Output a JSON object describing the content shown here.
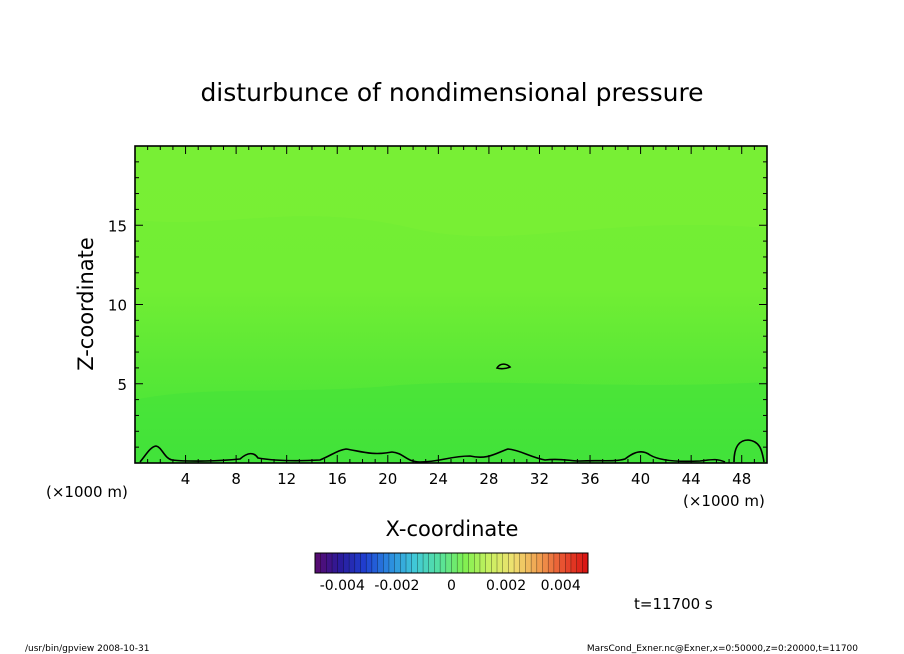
{
  "chart_data": {
    "type": "heatmap",
    "title": "disturbunce of nondimensional pressure",
    "xlabel": "X-coordinate",
    "ylabel": "Z-coordinate",
    "x_unit_left": "(×1000 m)",
    "x_unit_right": "(×1000 m)",
    "xlim": [
      0,
      50
    ],
    "ylim": [
      0,
      20
    ],
    "x_ticks": [
      "4",
      "8",
      "12",
      "16",
      "20",
      "24",
      "28",
      "32",
      "36",
      "40",
      "44",
      "48"
    ],
    "x_tick_values": [
      4,
      8,
      12,
      16,
      20,
      24,
      28,
      32,
      36,
      40,
      44,
      48
    ],
    "y_ticks": [
      "5",
      "10",
      "15"
    ],
    "y_tick_values": [
      5,
      10,
      15
    ],
    "colorbar": {
      "min": -0.005,
      "max": 0.005,
      "tick_labels": [
        "-0.004",
        "-0.002",
        "0",
        "0.002",
        "0.004"
      ],
      "tick_values": [
        -0.004,
        -0.002,
        0,
        0.002,
        0.004
      ],
      "colors": [
        "#5a0a6e",
        "#2a1a9a",
        "#1f3fd0",
        "#2a8ae0",
        "#40c8d8",
        "#55e0a0",
        "#7ef050",
        "#c8f060",
        "#f0e070",
        "#f0a050",
        "#e85030",
        "#d81010"
      ]
    },
    "field_color_low": "#3fe43a",
    "field_color_high": "#7ef233",
    "contour_near_zero": true,
    "time_label": "t=11700 s",
    "colors": {
      "field_low": "#3fe43a",
      "field_high": "#7ef233",
      "contour": "#000000"
    }
  },
  "footer": {
    "left": "/usr/bin/gpview   2008-10-31",
    "right": "MarsCond_Exner.nc@Exner,x=0:50000,z=0:20000,t=11700"
  }
}
